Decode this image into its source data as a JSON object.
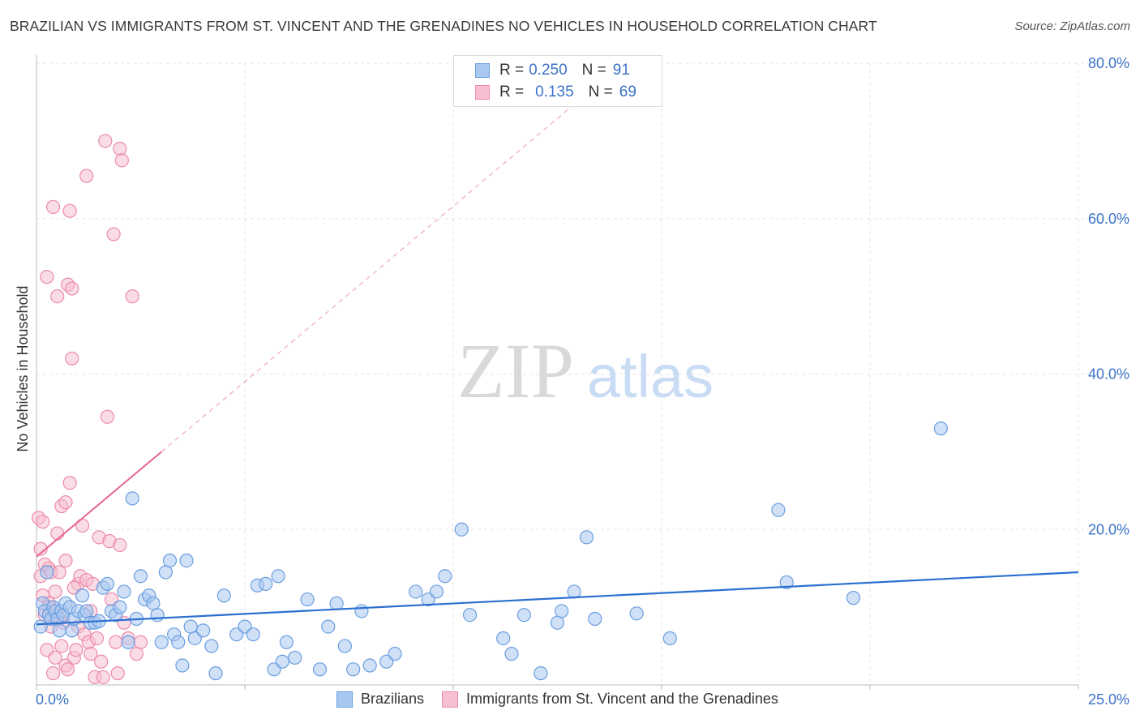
{
  "title": "BRAZILIAN VS IMMIGRANTS FROM ST. VINCENT AND THE GRENADINES NO VEHICLES IN HOUSEHOLD CORRELATION CHART",
  "source": "Source: ZipAtlas.com",
  "watermark": {
    "zip": "ZIP",
    "atlas": "atlas"
  },
  "legend_stats": [
    {
      "r_label": "R =",
      "r_value": "0.250",
      "n_label": "N =",
      "n_value": "91"
    },
    {
      "r_label": "R =",
      "r_value": "0.135",
      "n_label": "N =",
      "n_value": "69"
    }
  ],
  "colors": {
    "blue_fill": "#a9c8f0",
    "blue_stroke": "#6a9ee0",
    "blue_line": "#2a6fd0",
    "pink_fill": "#f6c0d0",
    "pink_stroke": "#ec8aaa",
    "pink_line": "#e8668f",
    "axis_text": "#3b73c8",
    "grid": "#e6e6e6"
  },
  "chart_data": {
    "type": "scatter",
    "title": "BRAZILIAN VS IMMIGRANTS FROM ST. VINCENT AND THE GRENADINES NO VEHICLES IN HOUSEHOLD CORRELATION CHART",
    "xlabel": "",
    "ylabel": "No Vehicles in Household",
    "xlim": [
      0,
      25
    ],
    "ylim": [
      0,
      80
    ],
    "x_tick_labels": [
      "0.0%",
      "25.0%"
    ],
    "y_ticks": [
      20,
      40,
      60,
      80
    ],
    "y_tick_labels": [
      "20.0%",
      "40.0%",
      "60.0%",
      "80.0%"
    ],
    "series": [
      {
        "name": "Brazilians",
        "r": 0.25,
        "n": 91,
        "trend": {
          "x": [
            0,
            25
          ],
          "y": [
            7.8,
            14.5
          ],
          "style": "solid"
        },
        "points": [
          [
            0.1,
            7.5
          ],
          [
            0.15,
            10.5
          ],
          [
            0.2,
            9.5
          ],
          [
            0.25,
            14.5
          ],
          [
            0.3,
            9
          ],
          [
            0.35,
            8.5
          ],
          [
            0.4,
            10
          ],
          [
            0.45,
            9.5
          ],
          [
            0.5,
            8.5
          ],
          [
            0.55,
            7
          ],
          [
            0.6,
            9.5
          ],
          [
            0.65,
            9
          ],
          [
            0.7,
            10.5
          ],
          [
            0.8,
            10
          ],
          [
            0.85,
            7
          ],
          [
            0.9,
            8.5
          ],
          [
            1.0,
            9.5
          ],
          [
            1.1,
            11.5
          ],
          [
            1.15,
            9
          ],
          [
            1.2,
            9.5
          ],
          [
            1.3,
            8
          ],
          [
            1.4,
            8
          ],
          [
            1.5,
            8.2
          ],
          [
            1.6,
            12.5
          ],
          [
            1.7,
            13
          ],
          [
            1.8,
            9.5
          ],
          [
            1.9,
            9
          ],
          [
            2.0,
            10
          ],
          [
            2.1,
            12
          ],
          [
            2.2,
            5.5
          ],
          [
            2.3,
            24
          ],
          [
            2.4,
            8.5
          ],
          [
            2.5,
            14
          ],
          [
            2.6,
            11
          ],
          [
            2.7,
            11.5
          ],
          [
            2.8,
            10.5
          ],
          [
            2.9,
            9
          ],
          [
            3.0,
            5.5
          ],
          [
            3.1,
            14.5
          ],
          [
            3.2,
            16
          ],
          [
            3.3,
            6.5
          ],
          [
            3.4,
            5.5
          ],
          [
            3.5,
            2.5
          ],
          [
            3.6,
            16
          ],
          [
            3.7,
            7.5
          ],
          [
            3.8,
            6
          ],
          [
            4.0,
            7
          ],
          [
            4.2,
            5
          ],
          [
            4.3,
            1.5
          ],
          [
            4.5,
            11.5
          ],
          [
            4.8,
            6.5
          ],
          [
            5.0,
            7.5
          ],
          [
            5.2,
            6.5
          ],
          [
            5.3,
            12.8
          ],
          [
            5.5,
            13
          ],
          [
            5.7,
            2
          ],
          [
            5.8,
            14
          ],
          [
            5.9,
            3
          ],
          [
            6.0,
            5.5
          ],
          [
            6.2,
            3.5
          ],
          [
            6.5,
            11
          ],
          [
            6.8,
            2
          ],
          [
            7.0,
            7.5
          ],
          [
            7.2,
            10.5
          ],
          [
            7.4,
            5
          ],
          [
            7.6,
            2
          ],
          [
            7.8,
            9.5
          ],
          [
            8.0,
            2.5
          ],
          [
            8.4,
            3
          ],
          [
            8.6,
            4
          ],
          [
            9.1,
            12
          ],
          [
            9.4,
            11
          ],
          [
            9.6,
            12
          ],
          [
            9.8,
            14
          ],
          [
            10.2,
            20
          ],
          [
            10.4,
            9
          ],
          [
            11.2,
            6
          ],
          [
            11.4,
            4
          ],
          [
            11.7,
            9
          ],
          [
            12.1,
            1.5
          ],
          [
            12.6,
            9.5
          ],
          [
            12.5,
            8
          ],
          [
            12.9,
            12
          ],
          [
            13.2,
            19
          ],
          [
            13.4,
            8.5
          ],
          [
            14.4,
            9.2
          ],
          [
            15.2,
            6
          ],
          [
            17.8,
            22.5
          ],
          [
            18.0,
            13.2
          ],
          [
            19.6,
            11.2
          ],
          [
            21.7,
            33
          ]
        ]
      },
      {
        "name": "Immigrants from St. Vincent and the Grenadines",
        "r": 0.135,
        "n": 69,
        "trend": {
          "x": [
            0,
            3
          ],
          "y": [
            16.5,
            30
          ],
          "style": "solid",
          "extension": {
            "x": [
              3,
              13.1
            ],
            "y": [
              30,
              75.6
            ],
            "style": "dashed"
          }
        },
        "points": [
          [
            0.05,
            21.5
          ],
          [
            0.1,
            17.5
          ],
          [
            0.1,
            14
          ],
          [
            0.15,
            11.5
          ],
          [
            0.2,
            15.5
          ],
          [
            0.2,
            9
          ],
          [
            0.25,
            52.5
          ],
          [
            0.25,
            4.5
          ],
          [
            0.3,
            15
          ],
          [
            0.3,
            10.5
          ],
          [
            0.35,
            14.5
          ],
          [
            0.35,
            7.5
          ],
          [
            0.4,
            61.5
          ],
          [
            0.4,
            1.5
          ],
          [
            0.45,
            12
          ],
          [
            0.45,
            3.5
          ],
          [
            0.5,
            50
          ],
          [
            0.5,
            19.5
          ],
          [
            0.5,
            9
          ],
          [
            0.55,
            8.5
          ],
          [
            0.6,
            23
          ],
          [
            0.6,
            5
          ],
          [
            0.65,
            8
          ],
          [
            0.7,
            23.5
          ],
          [
            0.7,
            16
          ],
          [
            0.7,
            2.5
          ],
          [
            0.75,
            51.5
          ],
          [
            0.8,
            61
          ],
          [
            0.8,
            26
          ],
          [
            0.85,
            51
          ],
          [
            0.85,
            42
          ],
          [
            0.9,
            3.5
          ],
          [
            0.95,
            4.5
          ],
          [
            1.0,
            13
          ],
          [
            1.0,
            7.5
          ],
          [
            1.05,
            14
          ],
          [
            1.1,
            20.5
          ],
          [
            1.15,
            6.5
          ],
          [
            1.2,
            65.5
          ],
          [
            1.2,
            13.5
          ],
          [
            1.25,
            5.5
          ],
          [
            1.3,
            4
          ],
          [
            1.35,
            13
          ],
          [
            1.4,
            1
          ],
          [
            1.45,
            6
          ],
          [
            1.5,
            19
          ],
          [
            1.55,
            3
          ],
          [
            1.6,
            1
          ],
          [
            1.65,
            70
          ],
          [
            1.7,
            34.5
          ],
          [
            1.75,
            18.5
          ],
          [
            1.8,
            11
          ],
          [
            1.85,
            58
          ],
          [
            1.9,
            5.5
          ],
          [
            1.95,
            1.5
          ],
          [
            2.0,
            18
          ],
          [
            2.0,
            69
          ],
          [
            2.05,
            67.5
          ],
          [
            2.1,
            8
          ],
          [
            2.2,
            6
          ],
          [
            2.3,
            50
          ],
          [
            2.4,
            4
          ],
          [
            2.5,
            5.5
          ],
          [
            0.15,
            21
          ],
          [
            0.3,
            10
          ],
          [
            0.55,
            14.5
          ],
          [
            0.9,
            12.5
          ],
          [
            1.3,
            9.5
          ],
          [
            0.75,
            2
          ]
        ]
      }
    ]
  },
  "legend": {
    "items": [
      {
        "label": "Brazilians"
      },
      {
        "label": "Immigrants from St. Vincent and the Grenadines"
      }
    ]
  }
}
